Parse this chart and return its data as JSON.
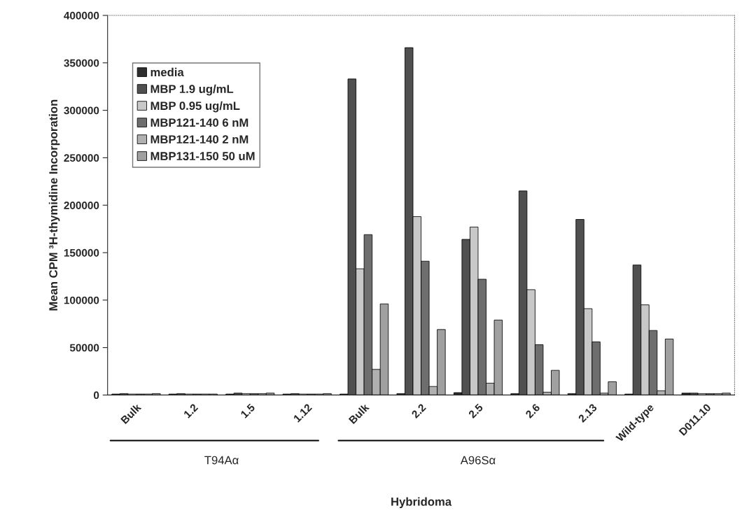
{
  "chart_data": {
    "type": "bar",
    "xlabel": "Hybridoma",
    "ylabel": "Mean CPM ³H-thymidine Incorporation",
    "categories": [
      "Bulk",
      "1.2",
      "1.5",
      "1.12",
      "Bulk",
      "2.2",
      "2.5",
      "2.6",
      "2.13",
      "Wild-type",
      "D011.10"
    ],
    "series": [
      {
        "name": "media",
        "color": "#2e2e2e",
        "values": [
          1000,
          1000,
          1000,
          1000,
          1000,
          1500,
          2500,
          1500,
          1500,
          1000,
          2000
        ]
      },
      {
        "name": "MBP 1.9 ug/mL",
        "color": "#505050",
        "values": [
          1500,
          1500,
          2000,
          1500,
          333000,
          366000,
          164000,
          215000,
          185000,
          137000,
          2000
        ]
      },
      {
        "name": "MBP 0.95 ug/mL",
        "color": "#c8c8c8",
        "values": [
          1000,
          1000,
          1500,
          1000,
          133000,
          188000,
          177000,
          111000,
          91000,
          95000,
          1500
        ]
      },
      {
        "name": "MBP121-140 6 nM",
        "color": "#6e6e6e",
        "values": [
          1000,
          1000,
          1500,
          1000,
          169000,
          141000,
          122000,
          53000,
          56000,
          68000,
          1500
        ]
      },
      {
        "name": "MBP121-140 2 nM",
        "color": "#b0b0b0",
        "values": [
          1000,
          1000,
          1500,
          1000,
          27000,
          9000,
          12500,
          3000,
          2000,
          4500,
          1500
        ]
      },
      {
        "name": "MBP131-150 50 uM",
        "color": "#a0a0a0",
        "values": [
          1500,
          1000,
          2000,
          1500,
          96000,
          69000,
          79000,
          26000,
          14000,
          59000,
          2000
        ]
      }
    ],
    "ylim": [
      0,
      400000
    ],
    "yticks": [
      0,
      50000,
      100000,
      150000,
      200000,
      250000,
      300000,
      350000,
      400000
    ],
    "legend": "top left",
    "annotations": [
      "T94Aα",
      "A96Sα"
    ]
  }
}
